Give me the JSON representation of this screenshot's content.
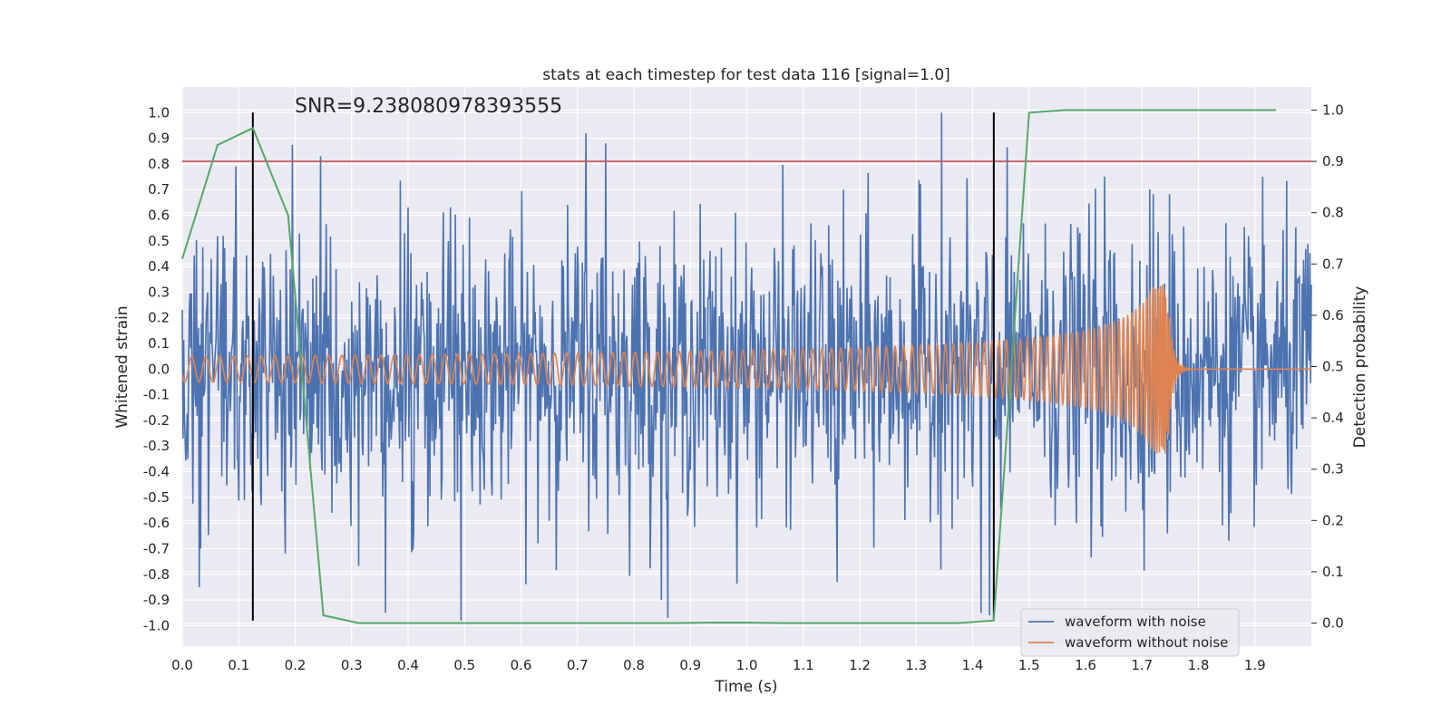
{
  "chart_data": {
    "type": "line",
    "title": "stats at each timestep for test data 116 [signal=1.0]",
    "annotation": "SNR=9.238080978393555",
    "xlabel": "Time (s)",
    "ylabel_left": "Whitened strain",
    "ylabel_right": "Detection probability",
    "xlim": [
      0.0,
      2.0
    ],
    "ylim_left": [
      -1.08,
      1.1
    ],
    "ylim_right": [
      -0.045,
      1.045
    ],
    "x_ticks": [
      "0.0",
      "0.1",
      "0.2",
      "0.3",
      "0.4",
      "0.5",
      "0.6",
      "0.7",
      "0.8",
      "0.9",
      "1.0",
      "1.1",
      "1.2",
      "1.3",
      "1.4",
      "1.5",
      "1.6",
      "1.7",
      "1.8",
      "1.9"
    ],
    "y_left_ticks": [
      "1.0",
      "0.9",
      "0.8",
      "0.7",
      "0.6",
      "0.5",
      "0.4",
      "0.3",
      "0.2",
      "0.1",
      "0.0",
      "-0.1",
      "-0.2",
      "-0.3",
      "-0.4",
      "-0.5",
      "-0.6",
      "-0.7",
      "-0.8",
      "-0.9",
      "-1.0"
    ],
    "y_right_ticks": [
      "1.0",
      "0.9",
      "0.8",
      "0.7",
      "0.6",
      "0.5",
      "0.4",
      "0.3",
      "0.2",
      "0.1",
      "0.0"
    ],
    "legend": [
      "waveform with noise",
      "waveform without noise"
    ],
    "colors": {
      "noise": "#4c72b0",
      "clean": "#dd8452",
      "probability": "#55a868",
      "threshold": "#c44e52",
      "marker": "#000000",
      "plot_bg": "#eaeaf2",
      "grid": "#ffffff"
    },
    "threshold_right": 0.9,
    "vertical_markers_s": [
      0.125,
      1.4375
    ],
    "noise_envelope": {
      "typical_amplitude": 0.35,
      "peak_abs": 1.0
    },
    "clean_signal": {
      "description": "chirp, amplitude grows from ~0.05 at t=0 to ~0.2 near merger, peak ~0.33 at t~1.745, then ringdown to 0",
      "merger_time_s": 1.745,
      "start_amplitude": 0.05,
      "peak_amplitude": 0.33,
      "start_frequency_hz": 40
    },
    "probability_series": {
      "x": [
        0.0,
        0.0625,
        0.125,
        0.1875,
        0.25,
        0.3125,
        0.375,
        0.4375,
        0.5,
        0.5625,
        0.625,
        0.6875,
        0.75,
        0.8125,
        0.875,
        0.9375,
        1.0,
        1.0625,
        1.125,
        1.1875,
        1.25,
        1.3125,
        1.375,
        1.4375,
        1.5,
        1.5625,
        1.625,
        1.6875,
        1.75,
        1.8125,
        1.875,
        1.9375
      ],
      "y": [
        0.71,
        0.932,
        0.965,
        0.795,
        0.015,
        0.0,
        0.0,
        0.0,
        0.0,
        0.0,
        0.0,
        0.0,
        0.0,
        0.0,
        0.0,
        0.001,
        0.001,
        0.0,
        0.0,
        0.0,
        0.0,
        0.0,
        0.0,
        0.005,
        0.995,
        1.0,
        1.0,
        1.0,
        1.0,
        1.0,
        1.0,
        1.0
      ]
    },
    "noise_spikes": [
      {
        "x": 0.03,
        "y": -0.85
      },
      {
        "x": 0.095,
        "y": 0.79
      },
      {
        "x": 0.195,
        "y": 0.875
      },
      {
        "x": 0.245,
        "y": 0.83
      },
      {
        "x": 0.36,
        "y": -0.95
      },
      {
        "x": 0.494,
        "y": -0.98
      },
      {
        "x": 0.715,
        "y": 0.92
      },
      {
        "x": 0.75,
        "y": 0.88
      },
      {
        "x": 0.86,
        "y": -0.97
      },
      {
        "x": 1.16,
        "y": -0.83
      },
      {
        "x": 1.345,
        "y": 1.0
      },
      {
        "x": 1.415,
        "y": -0.95
      },
      {
        "x": 1.43,
        "y": -0.96
      }
    ]
  }
}
